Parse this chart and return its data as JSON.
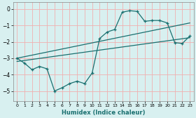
{
  "xlabel": "Humidex (Indice chaleur)",
  "bg_color": "#d8f0f0",
  "grid_color": "#f0b0b0",
  "line_color": "#1a7070",
  "xlim": [
    -0.5,
    23.5
  ],
  "ylim": [
    -5.6,
    0.4
  ],
  "xticks": [
    0,
    1,
    2,
    3,
    4,
    5,
    6,
    7,
    8,
    9,
    10,
    11,
    12,
    13,
    14,
    15,
    16,
    17,
    18,
    19,
    20,
    21,
    22,
    23
  ],
  "yticks": [
    0,
    -1,
    -2,
    -3,
    -4,
    -5
  ],
  "series1_x": [
    0,
    1,
    2,
    3,
    4,
    5,
    6,
    7,
    8,
    9,
    10,
    11,
    12,
    13,
    14,
    15,
    16,
    17,
    18,
    19,
    20,
    21,
    22,
    23
  ],
  "series1_y": [
    -3.0,
    -3.3,
    -3.7,
    -3.5,
    -3.65,
    -5.0,
    -4.8,
    -4.55,
    -4.4,
    -4.55,
    -3.9,
    -1.8,
    -1.4,
    -1.25,
    -0.2,
    -0.1,
    -0.15,
    -0.75,
    -0.7,
    -0.7,
    -0.85,
    -2.05,
    -2.1,
    -1.65
  ],
  "series2_x": [
    0,
    23
  ],
  "series2_y": [
    -3.0,
    -0.85
  ],
  "series3_x": [
    0,
    23
  ],
  "series3_y": [
    -3.2,
    -1.75
  ]
}
